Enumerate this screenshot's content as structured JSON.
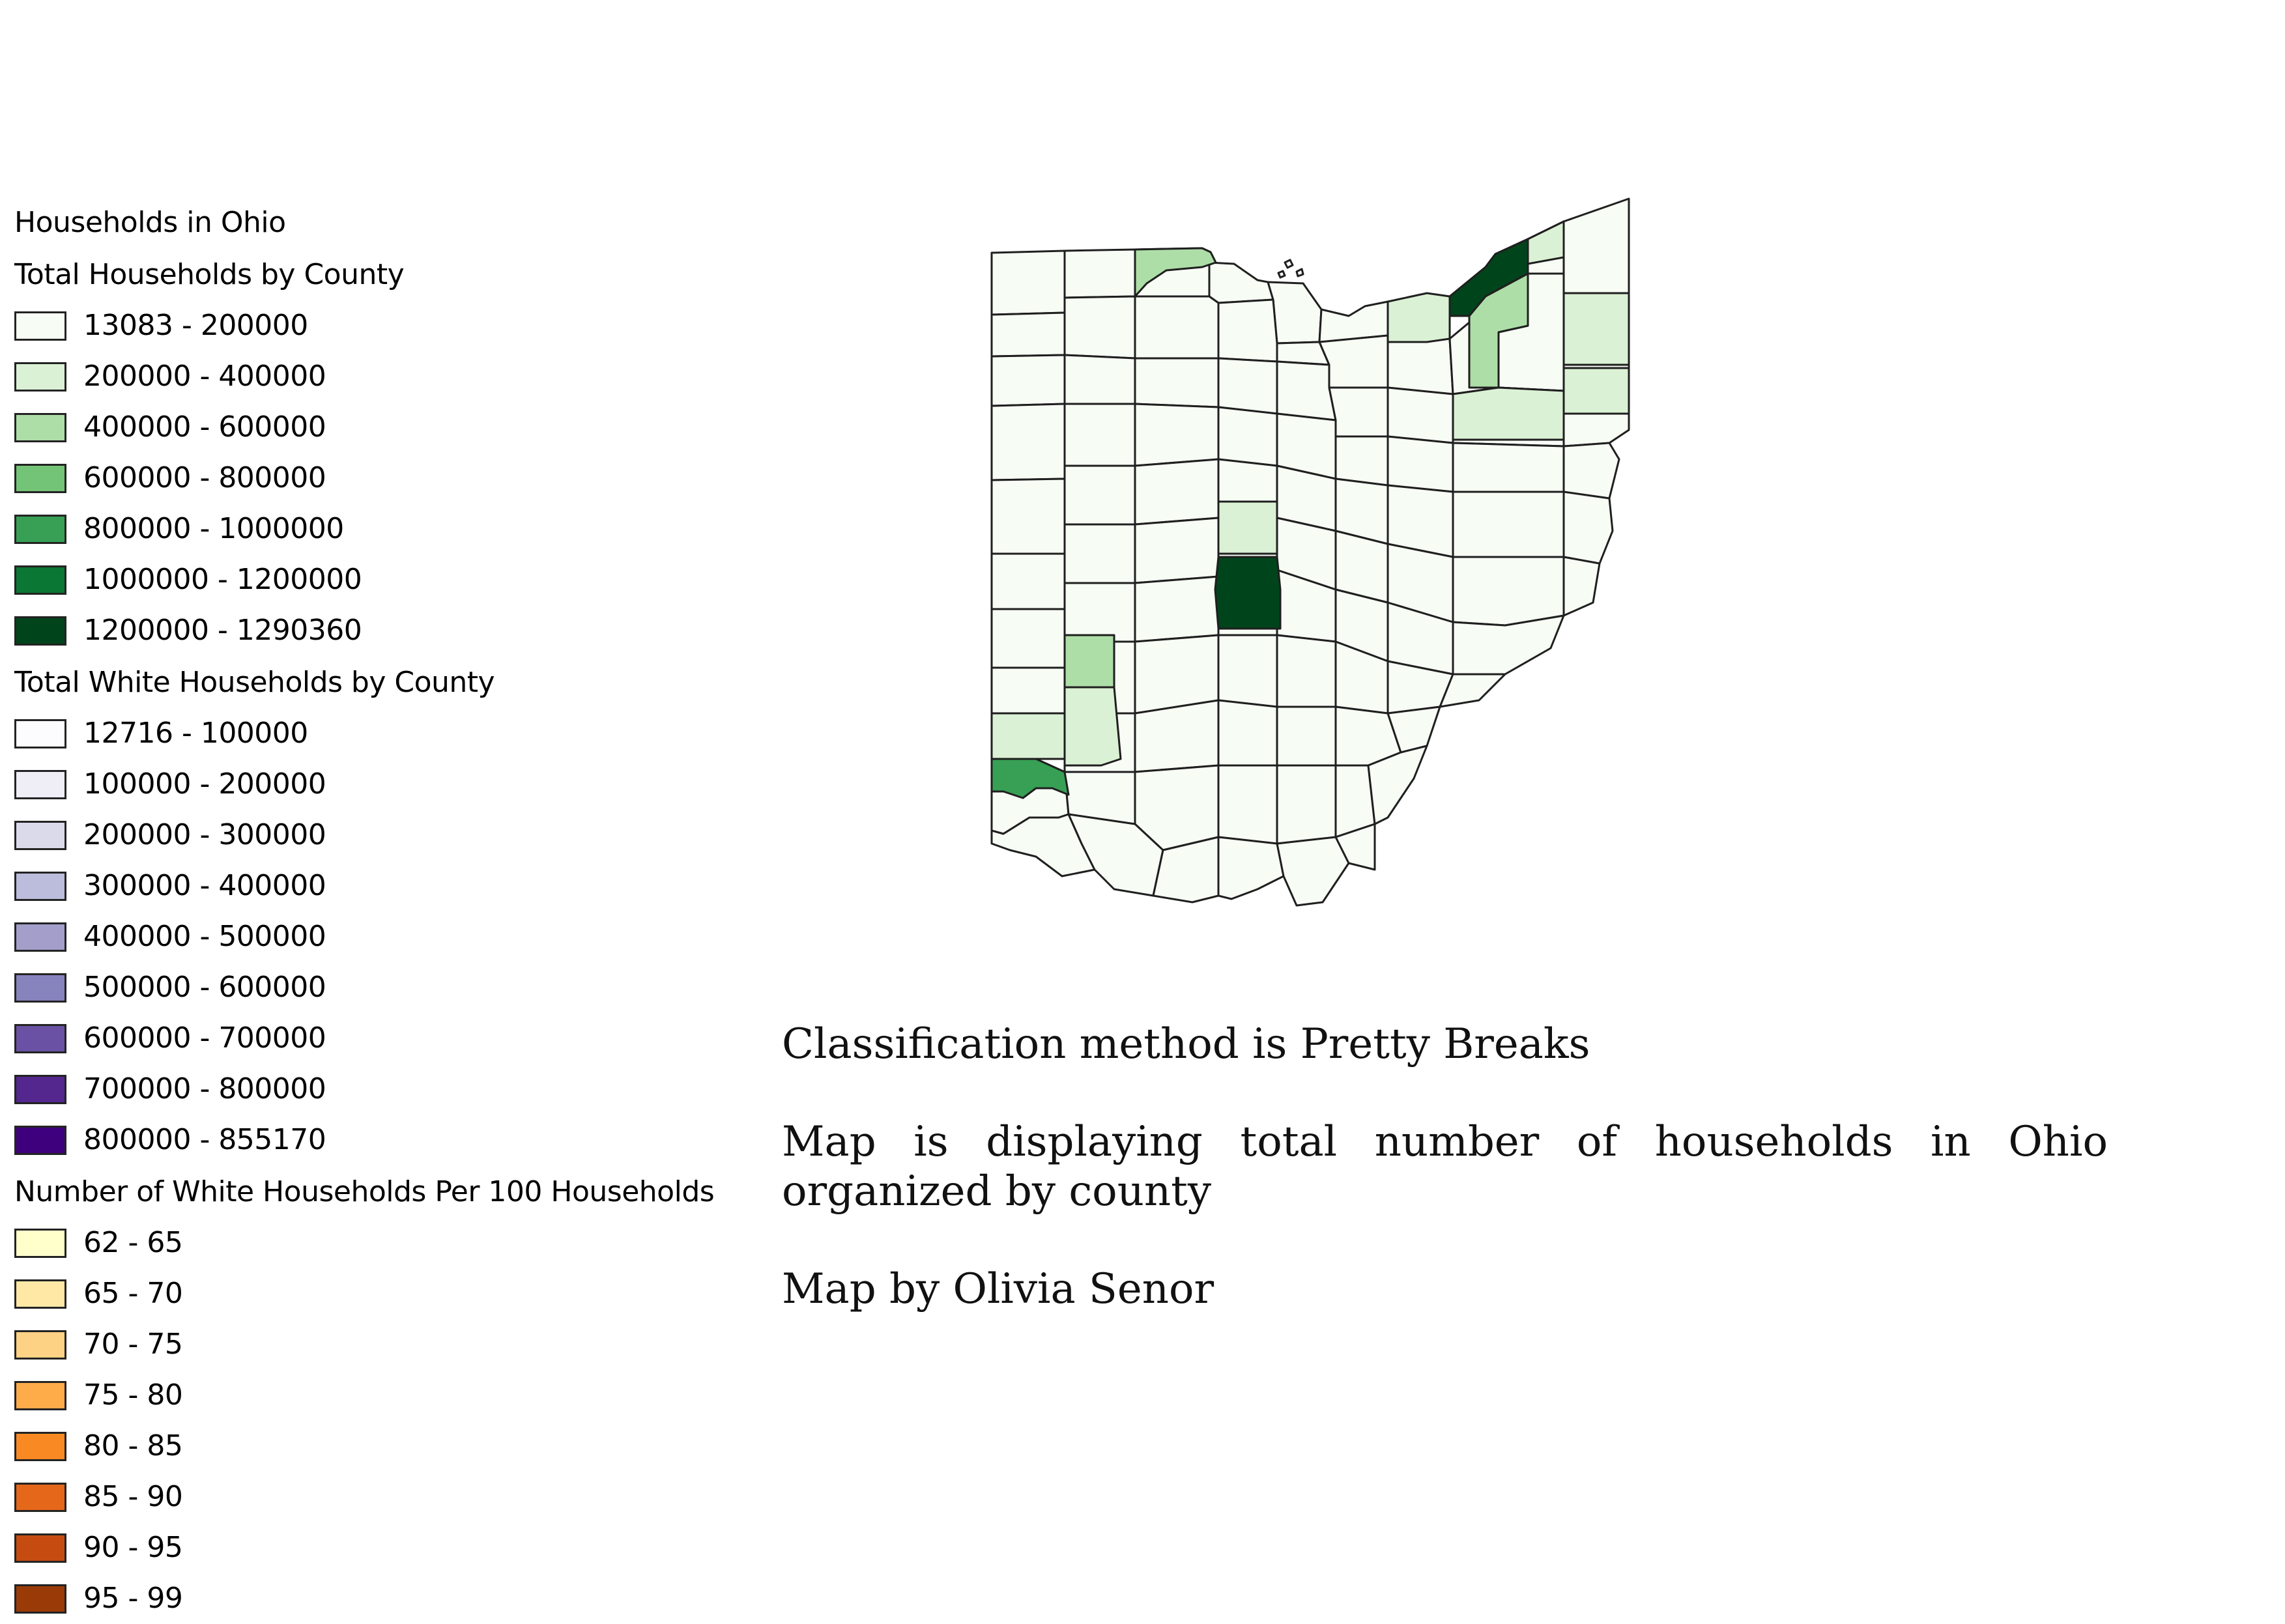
{
  "legend": {
    "title": "Households in Ohio",
    "groups": [
      {
        "title": "Total Households by County",
        "items": [
          {
            "label": "13083 - 200000",
            "color": "#f7fcf5"
          },
          {
            "label": "200000 - 400000",
            "color": "#dbf1d5"
          },
          {
            "label": "400000 - 600000",
            "color": "#aedea7"
          },
          {
            "label": "600000 - 800000",
            "color": "#73c476"
          },
          {
            "label": "800000 - 1000000",
            "color": "#37a055"
          },
          {
            "label": "1000000 - 1200000",
            "color": "#0b7734"
          },
          {
            "label": "1200000 - 1290360",
            "color": "#00441b"
          }
        ]
      },
      {
        "title": "Total White Households by County",
        "items": [
          {
            "label": "12716 - 100000",
            "color": "#fcfbfd"
          },
          {
            "label": "100000 - 200000",
            "color": "#efedf5"
          },
          {
            "label": "200000 - 300000",
            "color": "#dadaeb"
          },
          {
            "label": "300000 - 400000",
            "color": "#bcbddc"
          },
          {
            "label": "400000 - 500000",
            "color": "#a39fca"
          },
          {
            "label": "500000 - 600000",
            "color": "#8683bd"
          },
          {
            "label": "600000 - 700000",
            "color": "#6a51a3"
          },
          {
            "label": "700000 - 800000",
            "color": "#54278f"
          },
          {
            "label": "800000 - 855170",
            "color": "#3f007d"
          }
        ]
      },
      {
        "title": "Number of White Households Per 100 Households",
        "items": [
          {
            "label": "62 - 65",
            "color": "#ffffcc"
          },
          {
            "label": "65 - 70",
            "color": "#ffe8a6"
          },
          {
            "label": "70 - 75",
            "color": "#fed284"
          },
          {
            "label": "75 - 80",
            "color": "#feab4a"
          },
          {
            "label": "80 - 85",
            "color": "#f98a23"
          },
          {
            "label": "85 - 90",
            "color": "#e4671a"
          },
          {
            "label": "90 - 95",
            "color": "#c64b11"
          },
          {
            "label": "95 - 99",
            "color": "#9a3a07"
          }
        ]
      }
    ]
  },
  "notes": {
    "classification": "Classification method is Pretty Breaks",
    "description": "Map is displaying total number of households in Ohio organized by county",
    "author": "Map by Olivia Senor"
  },
  "map": {
    "base_fill": "#f7fcf5",
    "border_color": "#1f1f1f",
    "highlighted_counties": [
      {
        "name": "Cuyahoga",
        "class": "1200000 - 1290360",
        "color": "#00441b"
      },
      {
        "name": "Franklin",
        "class": "1200000 - 1290360",
        "color": "#00441b"
      },
      {
        "name": "Hamilton",
        "class": "800000 - 1000000",
        "color": "#37a055"
      },
      {
        "name": "Summit",
        "class": "400000 - 600000",
        "color": "#aedea7"
      },
      {
        "name": "Lucas",
        "class": "400000 - 600000",
        "color": "#aedea7"
      },
      {
        "name": "Montgomery",
        "class": "400000 - 600000",
        "color": "#aedea7"
      },
      {
        "name": "Lorain",
        "class": "200000 - 400000",
        "color": "#dbf1d5"
      },
      {
        "name": "Lake",
        "class": "200000 - 400000",
        "color": "#dbf1d5"
      },
      {
        "name": "Stark",
        "class": "200000 - 400000",
        "color": "#dbf1d5"
      },
      {
        "name": "Mahoning",
        "class": "200000 - 400000",
        "color": "#dbf1d5"
      },
      {
        "name": "Trumbull",
        "class": "200000 - 400000",
        "color": "#dbf1d5"
      },
      {
        "name": "Delaware",
        "class": "200000 - 400000",
        "color": "#dbf1d5"
      },
      {
        "name": "Butler",
        "class": "200000 - 400000",
        "color": "#dbf1d5"
      },
      {
        "name": "Warren",
        "class": "200000 - 400000",
        "color": "#dbf1d5"
      }
    ]
  }
}
